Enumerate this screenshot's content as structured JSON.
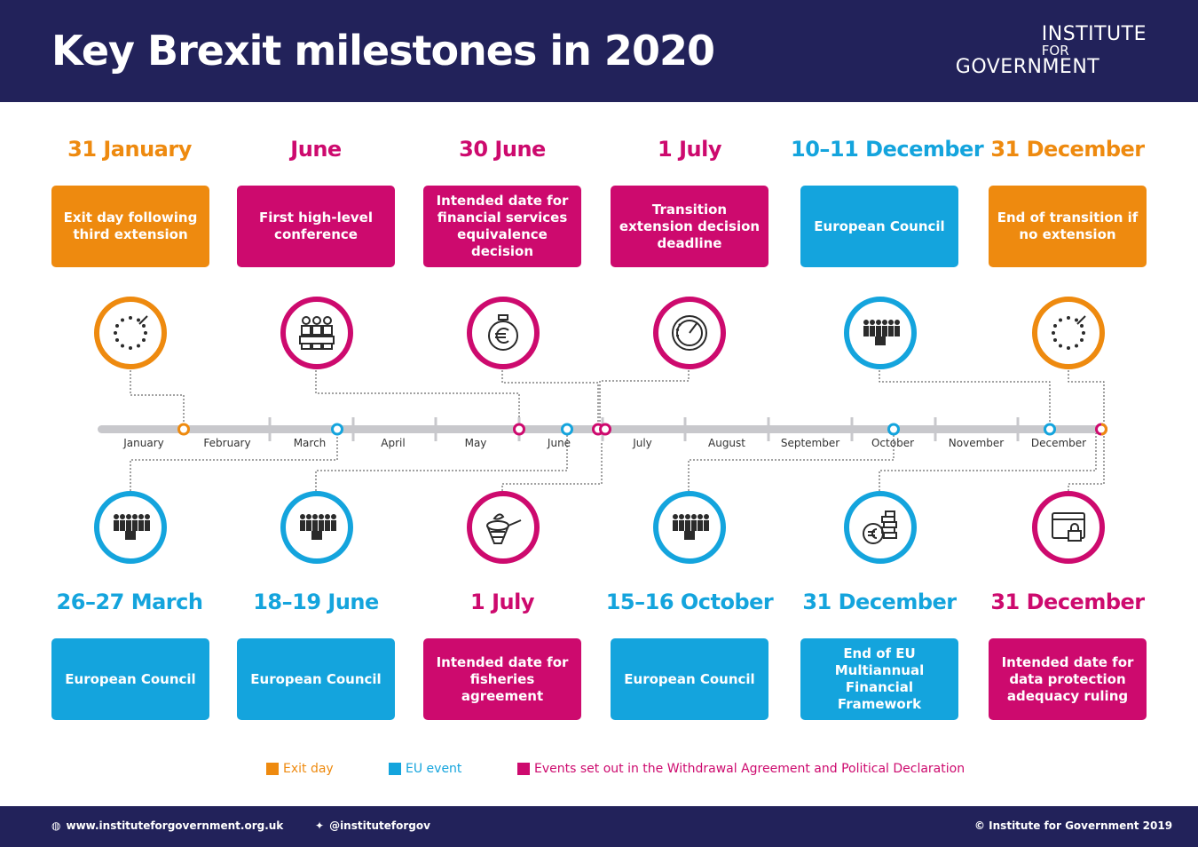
{
  "header": {
    "title": "Key Brexit milestones in 2020",
    "logo_line1": "INSTITUTE",
    "logo_line2": "FOR",
    "logo_line3": "GOVERNMENT"
  },
  "colors": {
    "exit": "#ee8a0f",
    "eu": "#14a4dd",
    "wa": "#cd0a6e",
    "navy": "#22225a"
  },
  "top_events": [
    {
      "date": "31 January",
      "text": "Exit day following third extension",
      "category": "exit",
      "icon": "eu-stars-icon"
    },
    {
      "date": "June",
      "text": "First high-level conference",
      "category": "wa",
      "icon": "conference-people-icon"
    },
    {
      "date": "30 June",
      "text": "Intended date for financial services equivalence decision",
      "category": "wa",
      "icon": "euro-stopwatch-icon"
    },
    {
      "date": "1 July",
      "text": "Transition extension decision deadline",
      "category": "wa",
      "icon": "gauge-clock-icon"
    },
    {
      "date": "10–11 December",
      "text": "European Council",
      "category": "eu",
      "icon": "council-crowd-icon"
    },
    {
      "date": "31 December",
      "text": "End of transition if no extension",
      "category": "exit",
      "icon": "eu-stars-icon"
    }
  ],
  "bottom_events": [
    {
      "date": "26–27 March",
      "text": "European Council",
      "category": "eu",
      "icon": "council-crowd-icon"
    },
    {
      "date": "18–19 June",
      "text": "European Council",
      "category": "eu",
      "icon": "council-crowd-icon"
    },
    {
      "date": "1 July",
      "text": "Intended date for fisheries agreement",
      "category": "wa",
      "icon": "fishing-net-icon"
    },
    {
      "date": "15–16 October",
      "text": "European Council",
      "category": "eu",
      "icon": "council-crowd-icon"
    },
    {
      "date": "31 December",
      "text": "End of EU Multiannual Financial Framework",
      "category": "eu",
      "icon": "euro-coins-icon"
    },
    {
      "date": "31 December",
      "text": "Intended date for data protection adequacy ruling",
      "category": "wa",
      "icon": "data-lock-icon"
    }
  ],
  "months": [
    "January",
    "February",
    "March",
    "April",
    "May",
    "June",
    "July",
    "August",
    "September",
    "October",
    "November",
    "December"
  ],
  "legend": {
    "exit": "Exit day",
    "eu": "EU event",
    "wa": "Events set out in the Withdrawal Agreement and Political Declaration"
  },
  "footer": {
    "website": "www.instituteforgovernment.org.uk",
    "twitter": "@instituteforgov",
    "copyright": "© Institute for Government 2019"
  }
}
